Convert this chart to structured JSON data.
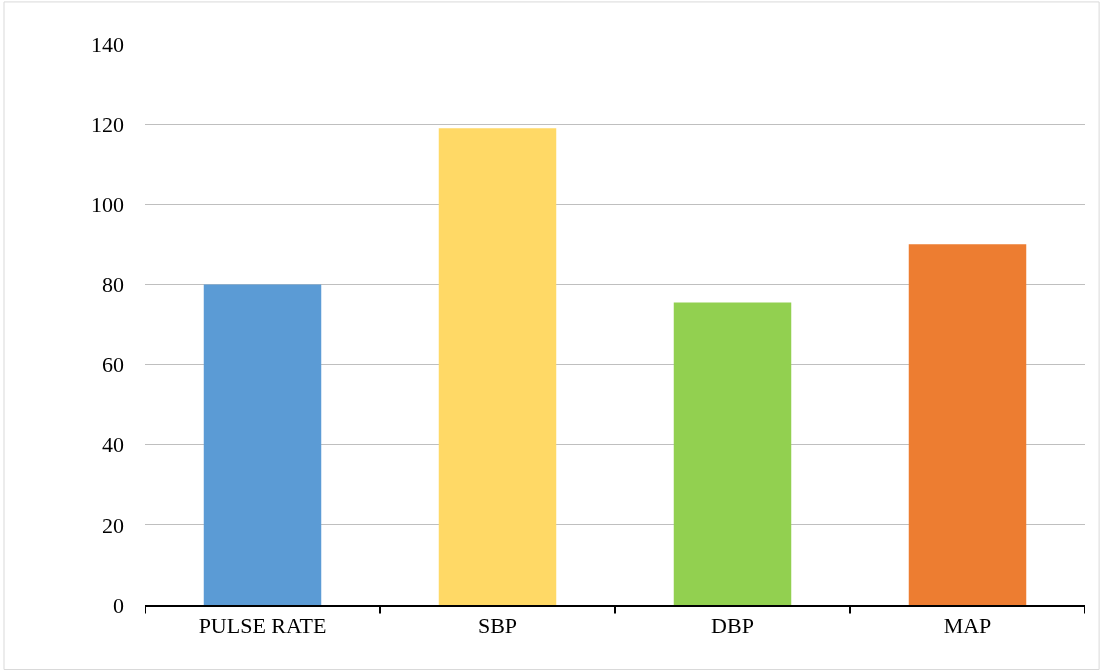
{
  "chart_data": {
    "type": "bar",
    "categories": [
      "PULSE RATE",
      "SBP",
      "DBP",
      "MAP"
    ],
    "values": [
      80,
      119,
      75.5,
      90
    ],
    "colors": [
      "#5b9bd5",
      "#ffd966",
      "#92d050",
      "#ed7d31"
    ],
    "ylim": [
      0,
      140
    ],
    "yticks": [
      0,
      20,
      40,
      60,
      80,
      100,
      120,
      140
    ],
    "grid": "y"
  }
}
